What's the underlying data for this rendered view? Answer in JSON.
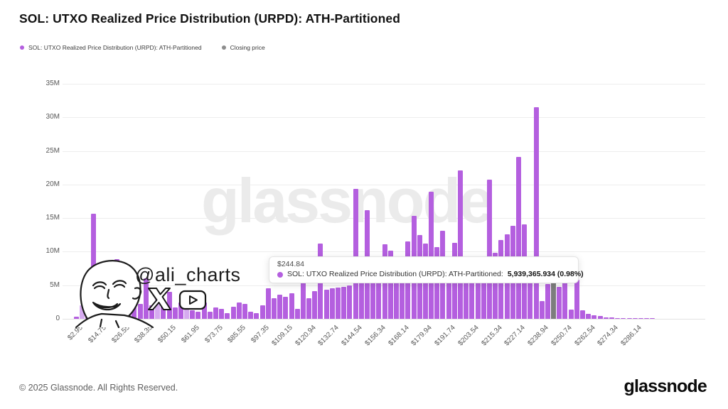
{
  "header": {
    "title": "SOL: UTXO Realized Price Distribution (URPD): ATH-Partitioned"
  },
  "legend": {
    "series": [
      {
        "label": "SOL: UTXO Realized Price Distribution (URPD): ATH-Partitioned",
        "color": "#b45fdf"
      },
      {
        "label": "Closing price",
        "color": "#8d8d8d"
      }
    ]
  },
  "tooltip": {
    "price": "$244.84",
    "series_label": "SOL: UTXO Realized Price Distribution (URPD): ATH-Partitioned:",
    "value": "5,939,365.934 (0.98%)",
    "dot_color": "#b45fdf"
  },
  "watermarks": {
    "brand": "glassnode",
    "handle": "@ali_charts"
  },
  "footer": {
    "copyright": "© 2025 Glassnode. All Rights Reserved.",
    "brand": "glassnode"
  },
  "chart_data": {
    "type": "bar",
    "title": "SOL: UTXO Realized Price Distribution (URPD): ATH-Partitioned",
    "grid": true,
    "legend_position": "top-left",
    "ylim_millions": [
      0,
      35
    ],
    "y_ticks": [
      "0",
      "5M",
      "10M",
      "15M",
      "20M",
      "25M",
      "30M",
      "35M"
    ],
    "bar_step_usd": 2.95,
    "first_bucket_usd": 2.95,
    "x_tick_labels": [
      "$2.95",
      "$14.75",
      "$26.55",
      "$38.35",
      "$50.15",
      "$61.95",
      "$73.75",
      "$85.55",
      "$97.35",
      "$109.15",
      "$120.94",
      "$132.74",
      "$144.54",
      "$156.34",
      "$168.14",
      "$179.94",
      "$191.74",
      "$203.54",
      "$215.34",
      "$227.14",
      "$238.94",
      "$250.74",
      "$262.54",
      "$274.34",
      "$286.14"
    ],
    "x_tick_every_n_bars": 4,
    "values_millions": [
      0.3,
      2.0,
      4.7,
      15.7,
      4.5,
      4.3,
      3.3,
      8.9,
      3.6,
      4.7,
      2.4,
      2.2,
      6.0,
      2.0,
      3.6,
      2.4,
      4.0,
      1.7,
      2.4,
      3.1,
      1.3,
      1.1,
      2.4,
      1.1,
      1.7,
      1.5,
      0.8,
      1.8,
      2.4,
      2.2,
      1.1,
      0.8,
      2.0,
      4.5,
      3.1,
      3.6,
      3.3,
      3.8,
      1.5,
      5.4,
      3.1,
      4.1,
      11.2,
      4.3,
      4.5,
      4.6,
      4.8,
      5.0,
      19.4,
      6.6,
      16.2,
      5.5,
      5.6,
      11.1,
      10.2,
      6.0,
      6.2,
      11.5,
      15.3,
      12.5,
      11.2,
      18.9,
      10.7,
      13.1,
      6.0,
      11.3,
      22.1,
      6.5,
      6.3,
      6.6,
      6.4,
      20.7,
      9.8,
      11.7,
      12.6,
      13.9,
      24.1,
      14.1,
      6.0,
      31.5,
      2.6,
      5.2,
      5.94,
      4.8,
      5.4,
      1.4,
      5.8,
      1.3,
      0.7,
      0.5,
      0.4,
      0.25,
      0.2,
      0.15,
      0.12,
      0.1,
      0.08,
      0.07,
      0.05,
      0.04
    ],
    "light_bar_indices": [
      1,
      14,
      19
    ],
    "bar_color": "#b45fdf",
    "bar_color_light": "#d6abf0",
    "closing_price": {
      "label": "Closing price",
      "price": "$244.84",
      "bar_index": 82,
      "value_millions": 5.94,
      "color": "#7d7d7d"
    }
  }
}
